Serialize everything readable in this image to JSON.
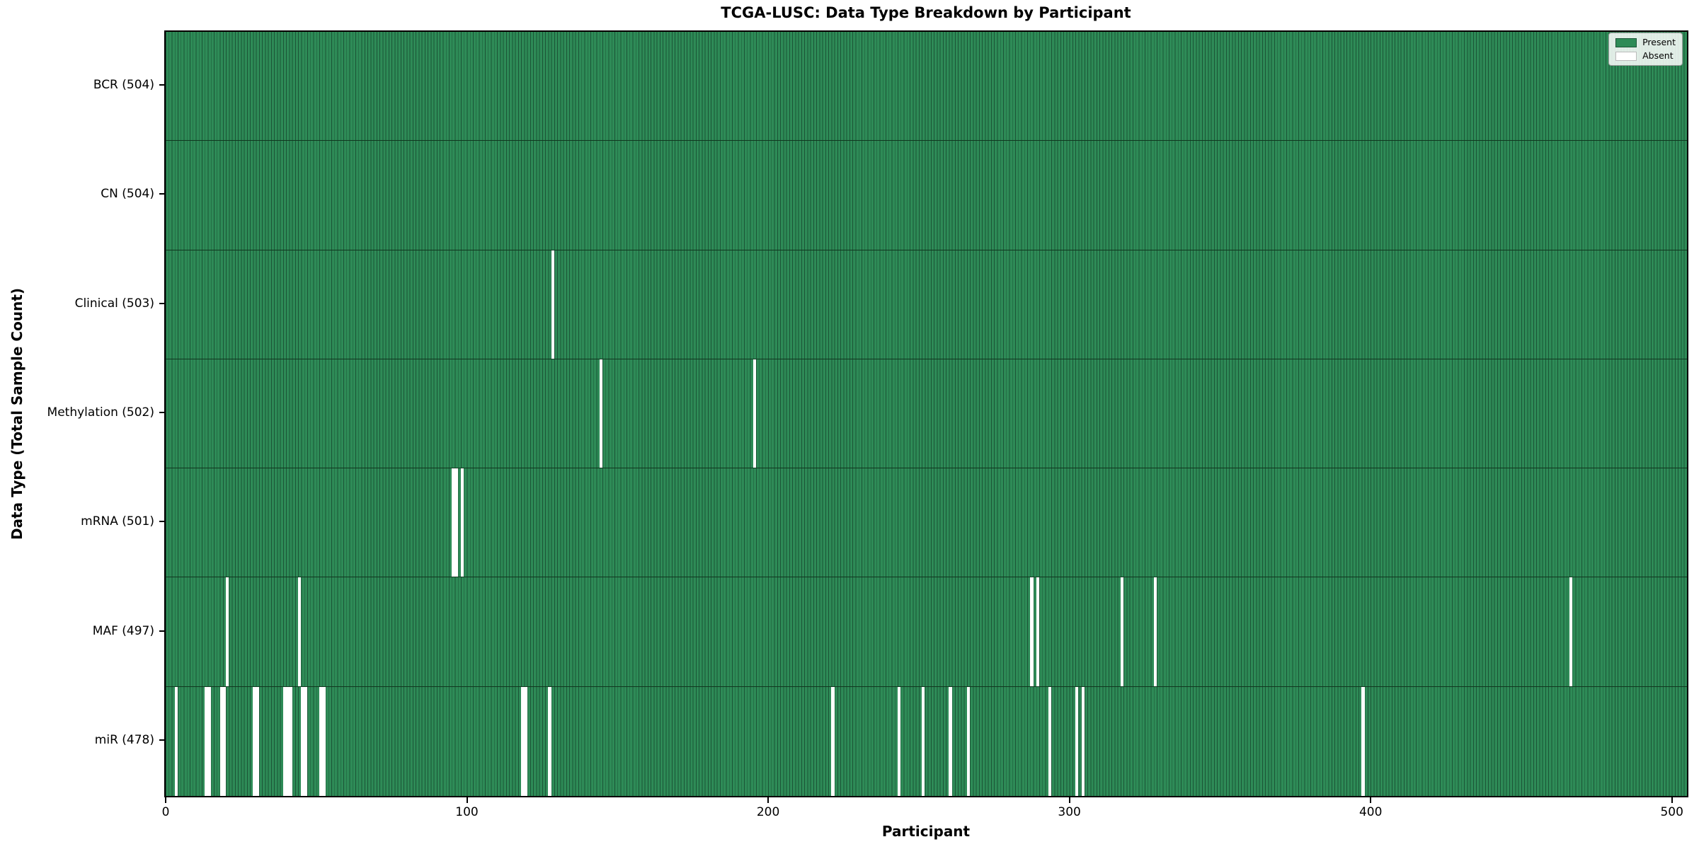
{
  "chart_data": {
    "type": "heatmap",
    "title": "TCGA-LUSC: Data Type Breakdown by Participant",
    "xlabel": "Participant",
    "ylabel": "Data Type (Total Sample Count)",
    "x_ticks": [
      0,
      100,
      200,
      300,
      400,
      500
    ],
    "x_units_total": 505,
    "total_participants": 504,
    "legend": {
      "position": "top-right",
      "items": [
        {
          "label": "Present",
          "color": "#2e8b57"
        },
        {
          "label": "Absent",
          "color": "#ffffff"
        }
      ]
    },
    "colors": {
      "present_fill": "#2e8b57",
      "bar_edge": "#1b5436",
      "absent_fill": "#ffffff",
      "frame": "#000000"
    },
    "rows": [
      {
        "label": "BCR (504)",
        "name": "BCR",
        "present_count": 504,
        "absent_participants": []
      },
      {
        "label": "CN (504)",
        "name": "CN",
        "present_count": 504,
        "absent_participants": []
      },
      {
        "label": "Clinical (503)",
        "name": "Clinical",
        "present_count": 503,
        "absent_participants": [
          128
        ]
      },
      {
        "label": "Methylation (502)",
        "name": "Methylation",
        "present_count": 502,
        "absent_participants": [
          144,
          195
        ]
      },
      {
        "label": "mRNA (501)",
        "name": "mRNA",
        "present_count": 501,
        "absent_participants": [
          95,
          96,
          98
        ]
      },
      {
        "label": "MAF (497)",
        "name": "MAF",
        "present_count": 497,
        "absent_participants": [
          20,
          44,
          287,
          289,
          317,
          328,
          466
        ]
      },
      {
        "label": "miR (478)",
        "name": "miR",
        "present_count": 478,
        "absent_participants": [
          3,
          13,
          14,
          18,
          19,
          29,
          30,
          39,
          40,
          41,
          45,
          46,
          51,
          52,
          118,
          119,
          127,
          221,
          243,
          251,
          260,
          266,
          293,
          302,
          304,
          397
        ]
      }
    ]
  }
}
